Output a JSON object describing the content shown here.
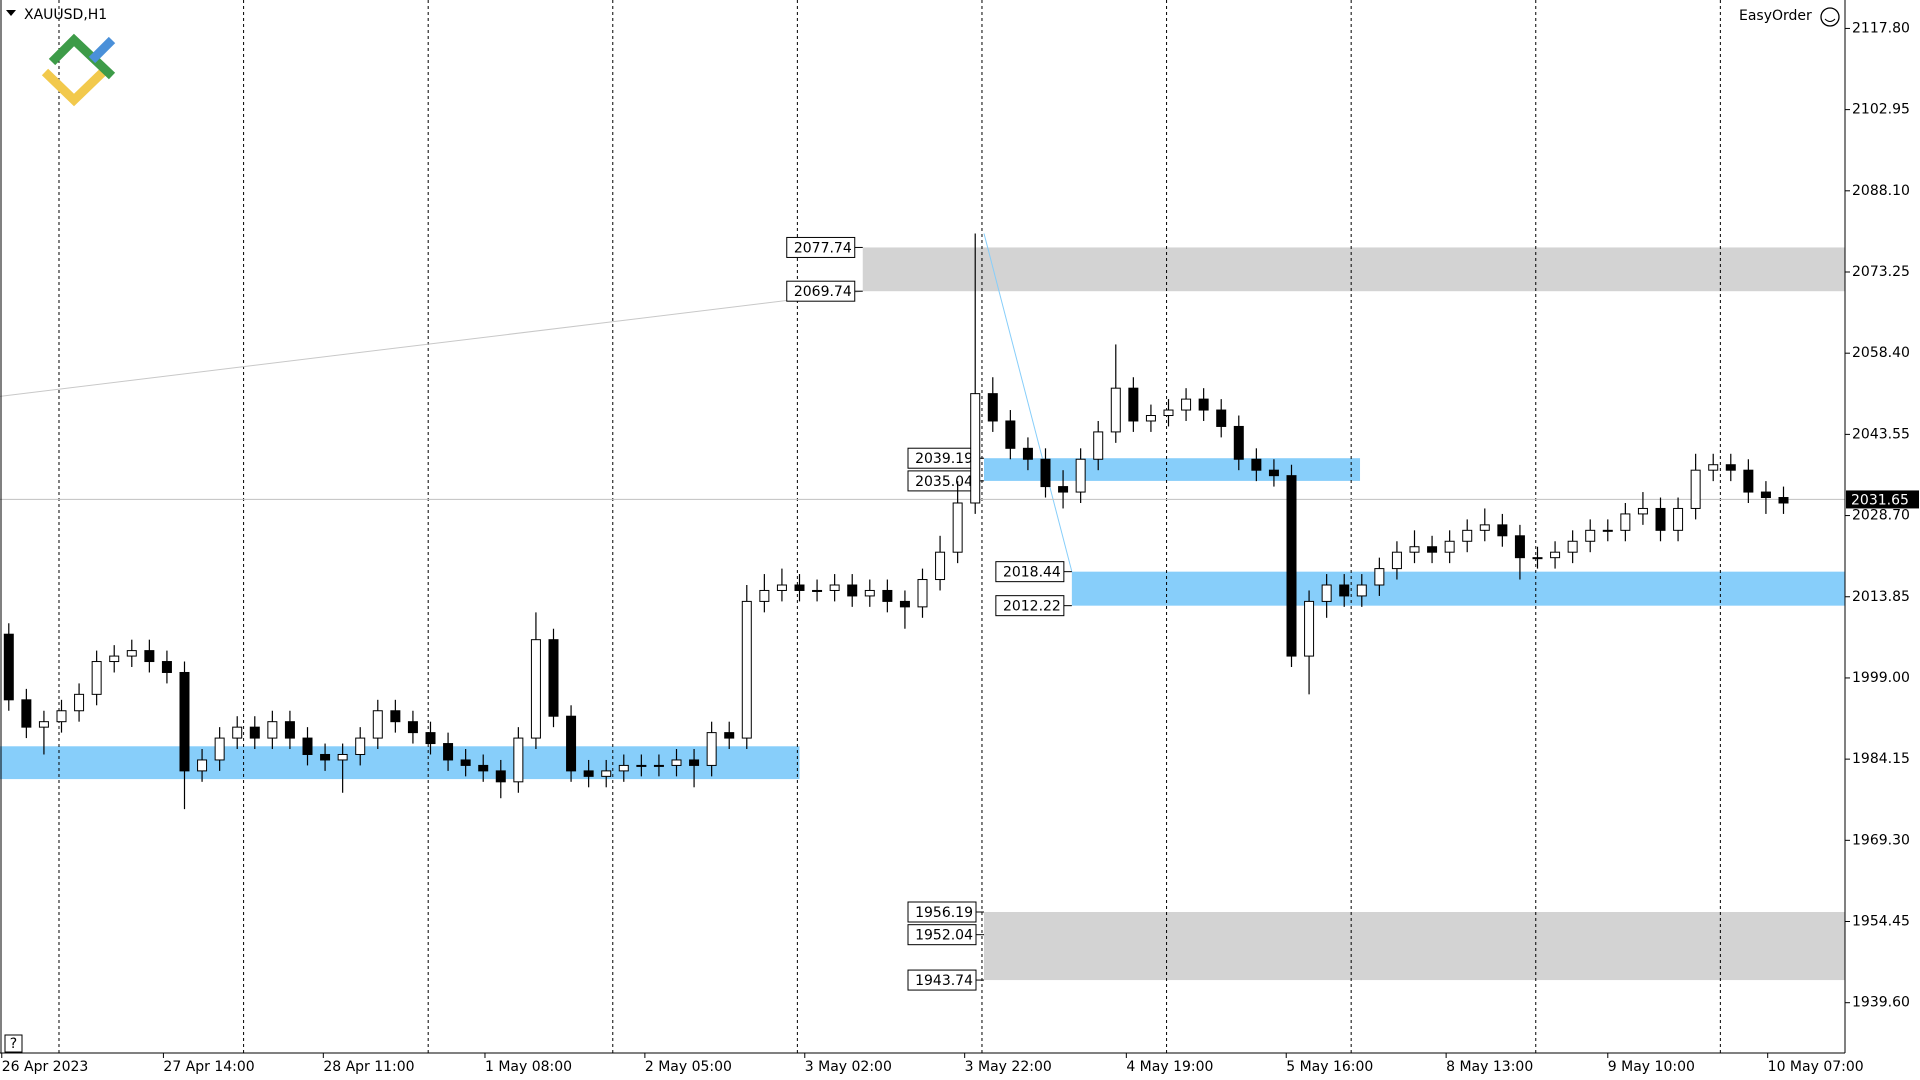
{
  "chart_data": {
    "type": "candlestick",
    "title": "XAUUSD,H1",
    "panel_label": "EasyOrder",
    "help_label": "?",
    "xlim": [
      0,
      105
    ],
    "ylim": [
      1930.4,
      2123.0
    ],
    "xticks": [
      {
        "value": 0.1,
        "label": "26 Apr 2023"
      },
      {
        "value": 9.3,
        "label": "27 Apr 14:00"
      },
      {
        "value": 18.4,
        "label": "28 Apr 11:00"
      },
      {
        "value": 27.6,
        "label": "1 May 08:00"
      },
      {
        "value": 36.7,
        "label": "2 May 05:00"
      },
      {
        "value": 45.8,
        "label": "3 May 02:00"
      },
      {
        "value": 54.9,
        "label": "3 May 22:00"
      },
      {
        "value": 64.1,
        "label": "4 May 19:00"
      },
      {
        "value": 73.2,
        "label": "5 May 16:00"
      },
      {
        "value": 82.3,
        "label": "8 May 13:00"
      },
      {
        "value": 91.5,
        "label": "9 May 10:00"
      },
      {
        "value": 100.6,
        "label": "10 May 07:00"
      }
    ],
    "yticks": [
      {
        "value": 2117.8,
        "label": "2117.80"
      },
      {
        "value": 2102.95,
        "label": "2102.95"
      },
      {
        "value": 2088.1,
        "label": "2088.10"
      },
      {
        "value": 2073.25,
        "label": "2073.25"
      },
      {
        "value": 2058.4,
        "label": "2058.40"
      },
      {
        "value": 2043.55,
        "label": "2043.55"
      },
      {
        "value": 2028.7,
        "label": "2028.70"
      },
      {
        "value": 2013.85,
        "label": "2013.85"
      },
      {
        "value": 1999,
        "label": "1999.00"
      },
      {
        "value": 1984.15,
        "label": "1984.15"
      },
      {
        "value": 1969.3,
        "label": "1969.30"
      },
      {
        "value": 1954.45,
        "label": "1954.45"
      },
      {
        "value": 1939.6,
        "label": "1939.60"
      }
    ],
    "current_price": 2031.65,
    "bull_color": "#ffffff",
    "bear_color": "#000000",
    "open": [
      2007,
      1995,
      1990,
      1991,
      1993,
      1996,
      2002,
      2003,
      2004,
      2002,
      2000,
      1982,
      1984,
      1988,
      1990,
      1988,
      1991,
      1988,
      1985,
      1984,
      1985,
      1988,
      1993,
      1991,
      1989,
      1987,
      1984,
      1983,
      1982,
      1980,
      1988,
      2006,
      1992,
      1982,
      1981,
      1982,
      1983,
      1983,
      1983,
      1984,
      1983,
      1989,
      1988,
      2013,
      2015,
      2016,
      2015,
      2015,
      2016,
      2014,
      2015,
      2013,
      2012,
      2017,
      2022,
      2031,
      2051,
      2046,
      2041,
      2039,
      2034,
      2033,
      2039,
      2044,
      2052,
      2046,
      2047,
      2048,
      2050,
      2048,
      2045,
      2039,
      2037,
      2036,
      2003,
      2013,
      2016,
      2014,
      2016,
      2019,
      2022,
      2023,
      2022,
      2024,
      2026,
      2027,
      2025,
      2021,
      2021,
      2022,
      2024,
      2026,
      2026,
      2029,
      2030,
      2026,
      2030,
      2037,
      2038,
      2037,
      2033,
      2032
    ],
    "high": [
      2009,
      1997,
      1993,
      1995,
      1998,
      2004,
      2005,
      2006,
      2006,
      2004,
      2002,
      1986,
      1990,
      1992,
      1992,
      1993,
      1993,
      1990,
      1987,
      1987,
      1990,
      1995,
      1995,
      1993,
      1991,
      1989,
      1986,
      1985,
      1984,
      1990,
      2011,
      2008,
      1994,
      1984,
      1984,
      1985,
      1985,
      1985,
      1986,
      1986,
      1991,
      1991,
      2016,
      2018,
      2019,
      2018,
      2017,
      2018,
      2018,
      2017,
      2017,
      2015,
      2019,
      2025,
      2035,
      2080.3,
      2054,
      2048,
      2043,
      2041,
      2037,
      2041,
      2046,
      2060,
      2054,
      2049,
      2050,
      2052,
      2052,
      2050,
      2047,
      2041,
      2039,
      2038,
      2015,
      2018,
      2018,
      2018,
      2021,
      2024,
      2026,
      2025,
      2026,
      2028,
      2030,
      2029,
      2027,
      2023,
      2024,
      2026,
      2028,
      2028,
      2031,
      2033,
      2032,
      2032,
      2040,
      2040,
      2040,
      2039,
      2035,
      2034
    ],
    "low": [
      1993,
      1988,
      1985,
      1989,
      1991,
      1994,
      2000,
      2001,
      2000,
      1998,
      1975,
      1980,
      1982,
      1986,
      1986,
      1986,
      1986,
      1983,
      1982,
      1978,
      1983,
      1986,
      1989,
      1987,
      1985,
      1982,
      1981,
      1980,
      1977,
      1978,
      1986,
      1990,
      1980,
      1979,
      1979,
      1980,
      1981,
      1981,
      1981,
      1979,
      1981,
      1986,
      1986,
      2011,
      2013,
      2013,
      2013,
      2013,
      2012,
      2012,
      2011,
      2008,
      2010,
      2015,
      2020,
      2029,
      2044,
      2039,
      2037,
      2032,
      2030,
      2031,
      2037,
      2042,
      2044,
      2044,
      2045,
      2046,
      2046,
      2043,
      2037,
      2035,
      2034,
      2001,
      1996,
      2010,
      2012,
      2012,
      2014,
      2017,
      2020,
      2020,
      2020,
      2022,
      2024,
      2023,
      2017,
      2019,
      2019,
      2020,
      2022,
      2024,
      2024,
      2027,
      2024,
      2024,
      2028,
      2035,
      2035,
      2031,
      2029,
      2029
    ],
    "close": [
      1995,
      1990,
      1991,
      1993,
      1996,
      2002,
      2003,
      2004,
      2002,
      2000,
      1982,
      1984,
      1988,
      1990,
      1988,
      1991,
      1988,
      1985,
      1984,
      1985,
      1988,
      1993,
      1991,
      1989,
      1987,
      1984,
      1983,
      1982,
      1980,
      1988,
      2006,
      1992,
      1982,
      1981,
      1982,
      1983,
      1983,
      1983,
      1984,
      1983,
      1989,
      1988,
      2013,
      2015,
      2016,
      2015,
      2015,
      2016,
      2014,
      2015,
      2013,
      2012,
      2017,
      2022,
      2031,
      2051,
      2046,
      2041,
      2039,
      2034,
      2033,
      2039,
      2044,
      2052,
      2046,
      2047,
      2048,
      2050,
      2048,
      2045,
      2039,
      2037,
      2036,
      2003,
      2013,
      2016,
      2014,
      2016,
      2019,
      2022,
      2023,
      2022,
      2024,
      2026,
      2027,
      2025,
      2021,
      2021,
      2022,
      2024,
      2026,
      2026,
      2029,
      2030,
      2026,
      2030,
      2037,
      2038,
      2037,
      2033,
      2032,
      2031
    ],
    "zones": [
      {
        "levels": [
          2077.74,
          2069.74
        ],
        "x_start": 49.1,
        "x_end": 105,
        "color": "#d3d3d3",
        "show_levels": true
      },
      {
        "levels": [
          2039.19,
          2035.04
        ],
        "x_start": 56.0,
        "x_end": 77.4,
        "color": "#87cefa",
        "show_levels": true
      },
      {
        "levels": [
          2018.44,
          2012.22
        ],
        "x_start": 61.0,
        "x_end": 105,
        "color": "#87cefa",
        "show_levels": true
      },
      {
        "levels": [
          1956.19,
          1952.04,
          1943.74
        ],
        "x_start": 56.0,
        "x_end": 105,
        "color": "#d3d3d3",
        "show_levels": true
      },
      {
        "levels": [
          1986.5,
          1980.5
        ],
        "x_start": 0,
        "x_end": 45.5,
        "color": "#87cefa",
        "show_levels": false
      }
    ],
    "trendlines": [
      {
        "x": [
          0,
          49.1
        ],
        "y": [
          2050.5,
          2069.74
        ],
        "color": "#c8c8c8"
      },
      {
        "x": [
          56.0,
          61.0
        ],
        "y": [
          2080.3,
          2018.44
        ],
        "color": "#87cefa"
      }
    ]
  }
}
